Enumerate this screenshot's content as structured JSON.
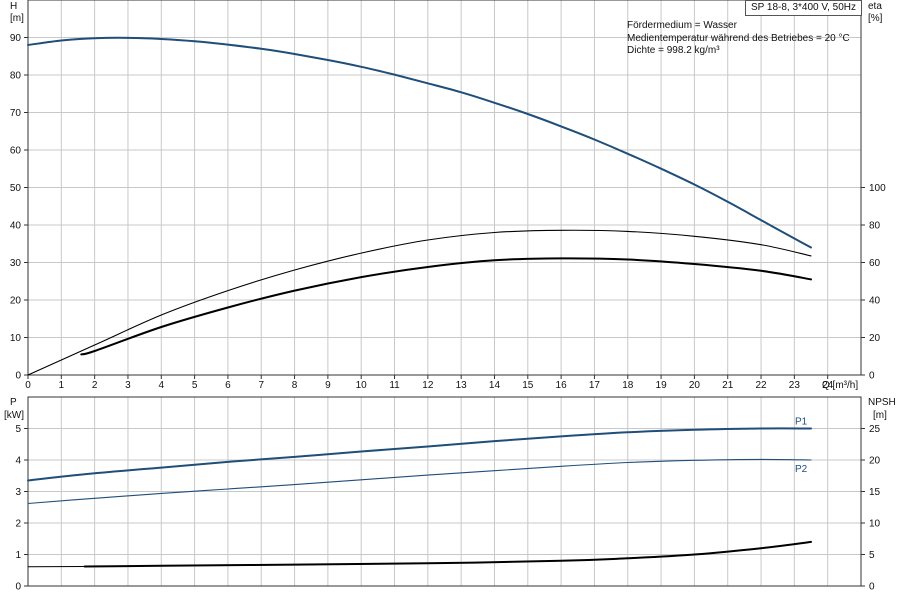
{
  "info": {
    "pump": "SP 18-8, 3*400 V, 50Hz",
    "lines": [
      "Fördermedium = Wasser",
      "Medientemperatur während des Betriebes = 20 °C",
      "Dichte = 998.2 kg/m³"
    ]
  },
  "chart_data": [
    {
      "type": "line",
      "x_axis": {
        "label": "Q [m³/h]",
        "range": [
          0,
          25
        ],
        "ticks": [
          0,
          1,
          2,
          3,
          4,
          5,
          6,
          7,
          8,
          9,
          10,
          11,
          12,
          13,
          14,
          15,
          16,
          17,
          18,
          19,
          20,
          21,
          22,
          23,
          24
        ]
      },
      "y_left": {
        "label": "H",
        "unit": "[m]",
        "range": [
          0,
          100
        ],
        "ticks": [
          0,
          10,
          20,
          30,
          40,
          50,
          60,
          70,
          80,
          90
        ]
      },
      "y_right": {
        "label": "eta",
        "unit": "[%]",
        "range": [
          0,
          200
        ],
        "ticks": [
          0,
          20,
          40,
          60,
          80,
          100
        ]
      },
      "grid": true,
      "series": [
        {
          "axis": "left",
          "color": "#1f4e79",
          "width": 2,
          "x": [
            0,
            1,
            2,
            3,
            4,
            5,
            6,
            7,
            8,
            9,
            10,
            11,
            12,
            13,
            14,
            15,
            16,
            17,
            18,
            19,
            20,
            21,
            22,
            23,
            23.5
          ],
          "values": [
            88,
            89.2,
            89.8,
            89.9,
            89.6,
            89,
            88.1,
            87,
            85.6,
            84,
            82.2,
            80.1,
            77.8,
            75.4,
            72.6,
            69.6,
            66.3,
            62.8,
            59,
            55,
            50.8,
            46.2,
            41.3,
            36.4,
            34
          ]
        },
        {
          "axis": "right",
          "color": "#000000",
          "width": 1.1,
          "x": [
            0,
            2,
            4,
            6,
            8,
            10,
            12,
            14,
            16,
            18,
            20,
            22,
            23.5
          ],
          "values": [
            0,
            16,
            32,
            45,
            56,
            65,
            72,
            76,
            77.2,
            76.6,
            74,
            69.5,
            63.5
          ]
        },
        {
          "axis": "right",
          "color": "#000000",
          "width": 2,
          "x": [
            1.6,
            2,
            4,
            6,
            8,
            10,
            12,
            14,
            16,
            18,
            20,
            22,
            23.5
          ],
          "values": [
            11,
            12.8,
            25.6,
            36,
            45,
            52.2,
            57.6,
            61.2,
            62.2,
            61.6,
            59.2,
            55.6,
            51
          ]
        }
      ]
    },
    {
      "type": "line",
      "x_axis": {
        "label": "Q [m³/h]",
        "range": [
          0,
          25
        ]
      },
      "y_left": {
        "label": "P",
        "unit": "[kW]",
        "range": [
          0,
          6
        ],
        "ticks": [
          0,
          1,
          2,
          3,
          4,
          5
        ]
      },
      "y_right": {
        "label": "NPSH",
        "unit": "[m]",
        "range": [
          0,
          30
        ],
        "ticks": [
          0,
          5,
          10,
          15,
          20,
          25
        ]
      },
      "grid": true,
      "series": [
        {
          "name": "P1",
          "axis": "left",
          "color": "#1f4e79",
          "width": 2,
          "x": [
            0,
            1.7,
            4,
            6,
            8,
            10,
            12,
            14,
            16,
            18,
            20,
            22,
            23.5
          ],
          "values": [
            3.35,
            3.55,
            3.76,
            3.94,
            4.1,
            4.27,
            4.43,
            4.6,
            4.75,
            4.88,
            4.96,
            5.0,
            5.0
          ]
        },
        {
          "name": "P2",
          "axis": "left",
          "color": "#1f4e79",
          "width": 1.1,
          "x": [
            0,
            1.7,
            4,
            6,
            8,
            10,
            12,
            14,
            16,
            18,
            20,
            22,
            23.5
          ],
          "values": [
            2.62,
            2.76,
            2.94,
            3.08,
            3.22,
            3.37,
            3.52,
            3.66,
            3.8,
            3.92,
            3.99,
            4.02,
            4.0
          ]
        },
        {
          "axis": "right",
          "color": "#000000",
          "width": 2,
          "x": [
            1.7,
            4,
            8,
            12,
            16,
            18,
            20,
            22,
            23.5
          ],
          "values": [
            3.1,
            3.2,
            3.4,
            3.6,
            4.0,
            4.4,
            5.0,
            6.0,
            7.0
          ]
        },
        {
          "axis": "right",
          "color": "#000000",
          "width": 1,
          "x": [
            0,
            1.7
          ],
          "values": [
            3.05,
            3.1
          ]
        }
      ]
    }
  ]
}
